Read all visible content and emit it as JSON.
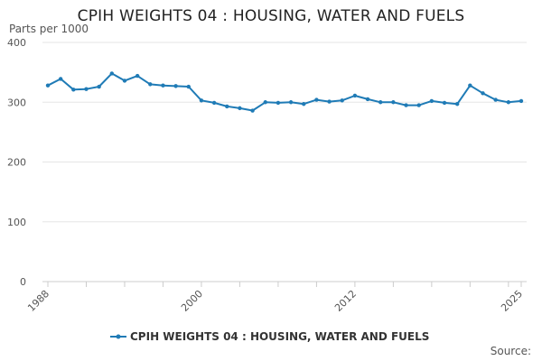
{
  "chart_data": {
    "type": "line",
    "title": "CPIH WEIGHTS 04 : HOUSING, WATER AND FUELS",
    "ylabel": "Parts per 1000",
    "xlabel": "",
    "ylim": [
      0,
      400
    ],
    "yticks": [
      0,
      100,
      200,
      300,
      400
    ],
    "xlim": [
      1988,
      2025
    ],
    "xticks": [
      1988,
      2000,
      2012,
      2025
    ],
    "series_color": "#1f7bb6",
    "grid_color": "#e6e6e6",
    "legend_position": "bottom-center",
    "source_label": "Source:",
    "series": [
      {
        "name": "CPIH WEIGHTS 04 : HOUSING, WATER AND FUELS",
        "x": [
          1988,
          1989,
          1990,
          1991,
          1992,
          1993,
          1994,
          1995,
          1996,
          1997,
          1998,
          1999,
          2000,
          2001,
          2002,
          2003,
          2004,
          2005,
          2006,
          2007,
          2008,
          2009,
          2010,
          2011,
          2012,
          2013,
          2014,
          2015,
          2016,
          2017,
          2018,
          2019,
          2020,
          2021,
          2022,
          2023,
          2024,
          2025
        ],
        "values": [
          328,
          339,
          321,
          322,
          326,
          348,
          336,
          344,
          330,
          328,
          327,
          326,
          303,
          299,
          293,
          290,
          286,
          300,
          299,
          300,
          297,
          304,
          301,
          303,
          311,
          305,
          300,
          300,
          295,
          295,
          302,
          299,
          297,
          328,
          315,
          304,
          300,
          302
        ]
      }
    ]
  }
}
